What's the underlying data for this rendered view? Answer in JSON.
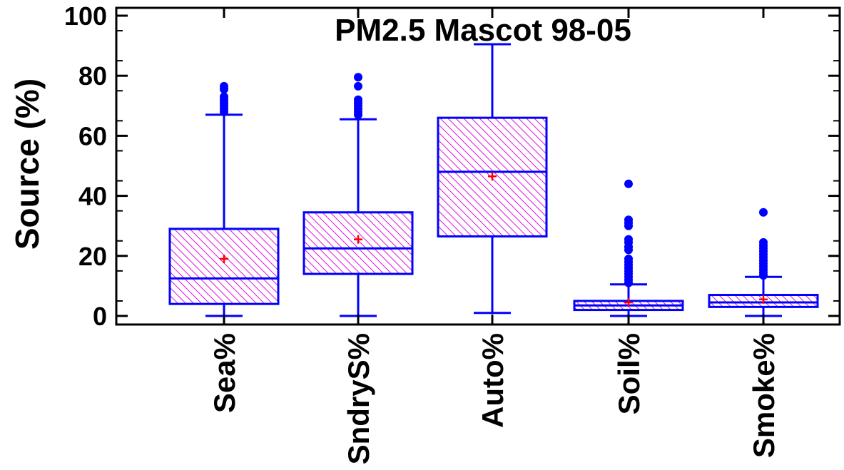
{
  "chart_data": {
    "type": "box",
    "title": "PM2.5 Mascot 98-05",
    "xlabel": "",
    "ylabel": "Source (%)",
    "ylim": [
      -3,
      102
    ],
    "yticks": [
      0,
      20,
      40,
      60,
      80,
      100
    ],
    "grid": false,
    "legend": "none",
    "colors": {
      "box_edge": "#0000ff",
      "box_hatch": "#e020e0",
      "mean_marker": "#ff0000",
      "outlier": "#0000ff",
      "axis": "#000000"
    },
    "categories": [
      "Sea%",
      "SndryS%",
      "Auto%",
      "Soil%",
      "Smoke%"
    ],
    "boxes": [
      {
        "category": "Sea%",
        "whisker_low": 0,
        "q1": 4,
        "median": 12.5,
        "q3": 29,
        "whisker_high": 67,
        "mean": 19,
        "outliers": [
          68,
          69,
          70,
          71,
          72,
          73,
          75.5,
          76.5
        ]
      },
      {
        "category": "SndryS%",
        "whisker_low": 0,
        "q1": 14,
        "median": 22.5,
        "q3": 34.5,
        "whisker_high": 65.5,
        "mean": 25.5,
        "outliers": [
          67,
          68,
          69,
          70,
          71,
          72,
          76.5,
          79.5
        ]
      },
      {
        "category": "Auto%",
        "whisker_low": 1,
        "q1": 26.5,
        "median": 48,
        "q3": 66,
        "whisker_high": 90.5,
        "mean": 46.5,
        "outliers": []
      },
      {
        "category": "Soil%",
        "whisker_low": 0,
        "q1": 2,
        "median": 3.5,
        "q3": 5,
        "whisker_high": 10.5,
        "mean": 4.5,
        "outliers": [
          11,
          12,
          13,
          14,
          15,
          16,
          17,
          18,
          19,
          22,
          23,
          24.5,
          25.5,
          30,
          31,
          32,
          44
        ]
      },
      {
        "category": "Smoke%",
        "whisker_low": 0,
        "q1": 3,
        "median": 4.5,
        "q3": 7,
        "whisker_high": 13,
        "mean": 5.5,
        "outliers": [
          13.5,
          14.5,
          15.5,
          16.5,
          17.5,
          18.5,
          19.5,
          20.5,
          21.5,
          22.5,
          23.5,
          24.5,
          34.5
        ]
      }
    ]
  }
}
